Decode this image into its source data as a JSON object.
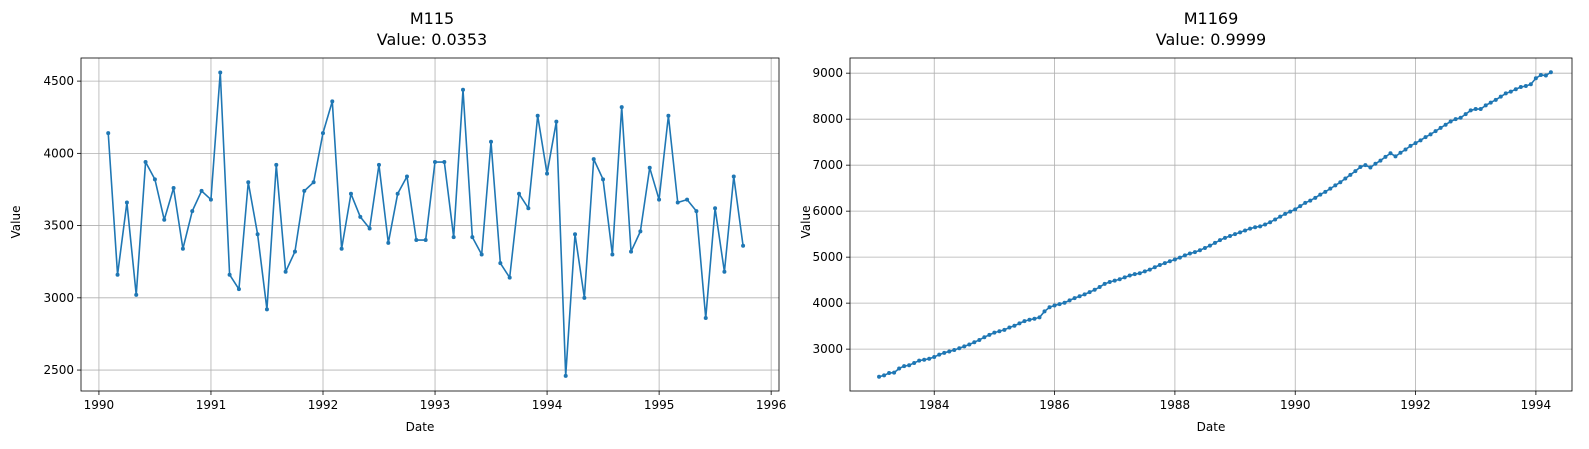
{
  "chart_data": [
    {
      "type": "line",
      "title": "M115",
      "subtitle": "Value: 0.0353",
      "xlabel": "Date",
      "ylabel": "Value",
      "grid": true,
      "color": "#1f77b4",
      "xlim": [
        1989.84,
        1996.07
      ],
      "ylim": [
        2355,
        4660
      ],
      "xticks": [
        1990,
        1991,
        1992,
        1993,
        1994,
        1995,
        1996
      ],
      "yticks": [
        2500,
        3000,
        3500,
        4000,
        4500
      ],
      "series": [
        {
          "x_start": 1990.083,
          "x_step": 0.08333,
          "values": [
            4140,
            3160,
            3660,
            3020,
            3940,
            3820,
            3540,
            3760,
            3340,
            3600,
            3740,
            3680,
            4560,
            3160,
            3060,
            3800,
            3440,
            2920,
            3920,
            3180,
            3320,
            3740,
            3800,
            4140,
            4360,
            3340,
            3720,
            3560,
            3480,
            3920,
            3380,
            3720,
            3840,
            3400,
            3400,
            3940,
            3940,
            3420,
            4440,
            3420,
            3300,
            4080,
            3240,
            3140,
            3720,
            3620,
            4260,
            3860,
            4220,
            2460,
            3440,
            3000,
            3960,
            3820,
            3300,
            4320,
            3320,
            3460,
            3900,
            3680,
            4260,
            3660,
            3680,
            3600,
            2860,
            3620,
            3180,
            3840,
            3360
          ]
        }
      ]
    },
    {
      "type": "line",
      "title": "M1169",
      "subtitle": "Value: 0.9999",
      "xlabel": "Date",
      "ylabel": "Value",
      "grid": true,
      "color": "#1f77b4",
      "xlim": [
        1982.6,
        1994.6
      ],
      "ylim": [
        2090,
        9330
      ],
      "xticks": [
        1984,
        1986,
        1988,
        1990,
        1992,
        1994
      ],
      "yticks": [
        3000,
        4000,
        5000,
        6000,
        7000,
        8000,
        9000
      ],
      "series": [
        {
          "x_start": 1983.083,
          "x_step": 0.08333,
          "values": [
            2400,
            2430,
            2480,
            2490,
            2580,
            2630,
            2650,
            2700,
            2750,
            2770,
            2790,
            2830,
            2880,
            2920,
            2950,
            2980,
            3020,
            3060,
            3100,
            3150,
            3200,
            3260,
            3310,
            3360,
            3390,
            3420,
            3470,
            3510,
            3560,
            3610,
            3640,
            3660,
            3690,
            3820,
            3910,
            3950,
            3980,
            4010,
            4060,
            4110,
            4150,
            4190,
            4240,
            4290,
            4350,
            4420,
            4460,
            4490,
            4520,
            4560,
            4600,
            4630,
            4650,
            4690,
            4730,
            4780,
            4830,
            4870,
            4910,
            4950,
            4990,
            5040,
            5080,
            5110,
            5150,
            5200,
            5250,
            5310,
            5370,
            5420,
            5460,
            5500,
            5540,
            5580,
            5620,
            5650,
            5670,
            5710,
            5760,
            5820,
            5880,
            5940,
            5990,
            6040,
            6110,
            6180,
            6230,
            6290,
            6360,
            6420,
            6490,
            6560,
            6630,
            6710,
            6790,
            6870,
            6960,
            7000,
            6950,
            7030,
            7100,
            7180,
            7260,
            7190,
            7270,
            7340,
            7420,
            7480,
            7540,
            7610,
            7670,
            7740,
            7810,
            7880,
            7950,
            8000,
            8030,
            8110,
            8190,
            8220,
            8220,
            8300,
            8360,
            8420,
            8490,
            8560,
            8600,
            8650,
            8700,
            8720,
            8760,
            8890,
            8960,
            8950,
            9020
          ]
        }
      ]
    }
  ]
}
